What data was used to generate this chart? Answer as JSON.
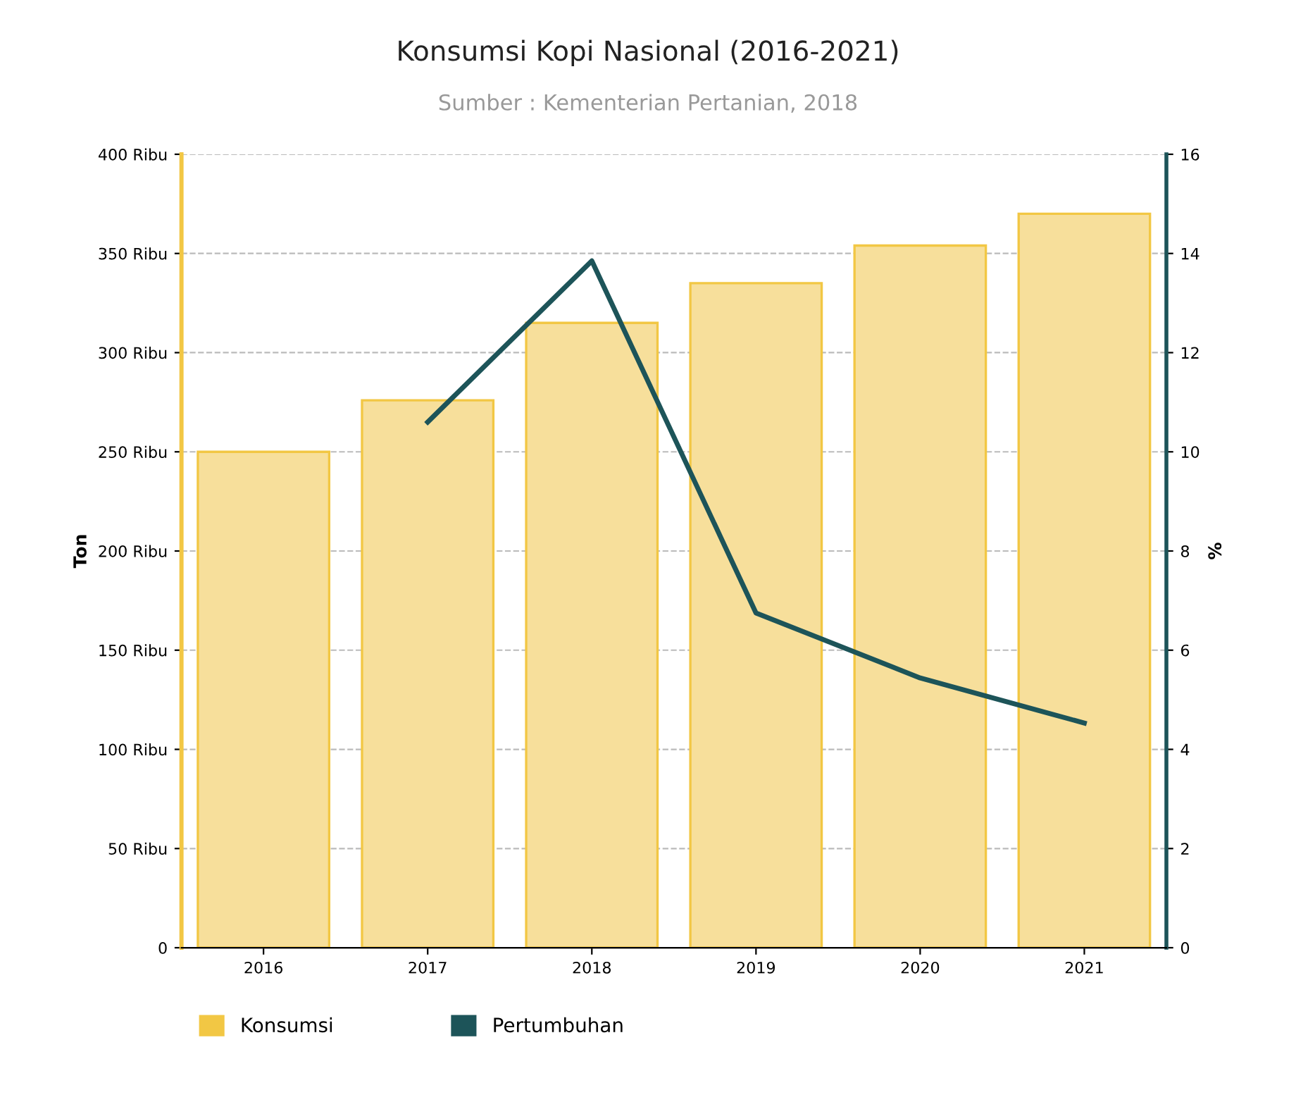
{
  "chart_data": {
    "type": "bar",
    "title": "Konsumsi Kopi Nasional (2016-2021)",
    "subtitle": "Sumber : Kementerian Pertanian, 2018",
    "ylabel": "Ton",
    "y2label": "%",
    "categories": [
      "2016",
      "2017",
      "2018",
      "2019",
      "2020",
      "2021"
    ],
    "series": [
      {
        "name": "Konsumsi",
        "color": "#f7df9b",
        "values": [
          250,
          276,
          315,
          335,
          354,
          370
        ]
      },
      {
        "name": "Pertumbuhan",
        "type": "line",
        "axis": "y2",
        "color": "#1d5459",
        "values": [
          null,
          10.6,
          13.85,
          6.75,
          5.44,
          4.53
        ]
      }
    ],
    "ylim": [
      0,
      400
    ],
    "yticks": [
      0,
      {
        "value": 50,
        "label": "50 Ribu"
      },
      {
        "value": 100,
        "label": "100 Ribu"
      },
      {
        "value": 150,
        "label": "150 Ribu"
      },
      {
        "value": 200,
        "label": "200 Ribu"
      },
      {
        "value": 250,
        "label": "250 Ribu"
      },
      {
        "value": 300,
        "label": "300 Ribu"
      },
      {
        "value": 350,
        "label": "350 Ribu"
      },
      {
        "value": 400,
        "label": "400 Ribu"
      }
    ],
    "y2lim": [
      0,
      16
    ],
    "y2ticks": [
      0,
      2,
      4,
      6,
      8,
      10,
      12,
      14,
      16
    ],
    "grid": "y",
    "legend": "bottom",
    "marker": "none",
    "line_style": "solid"
  }
}
